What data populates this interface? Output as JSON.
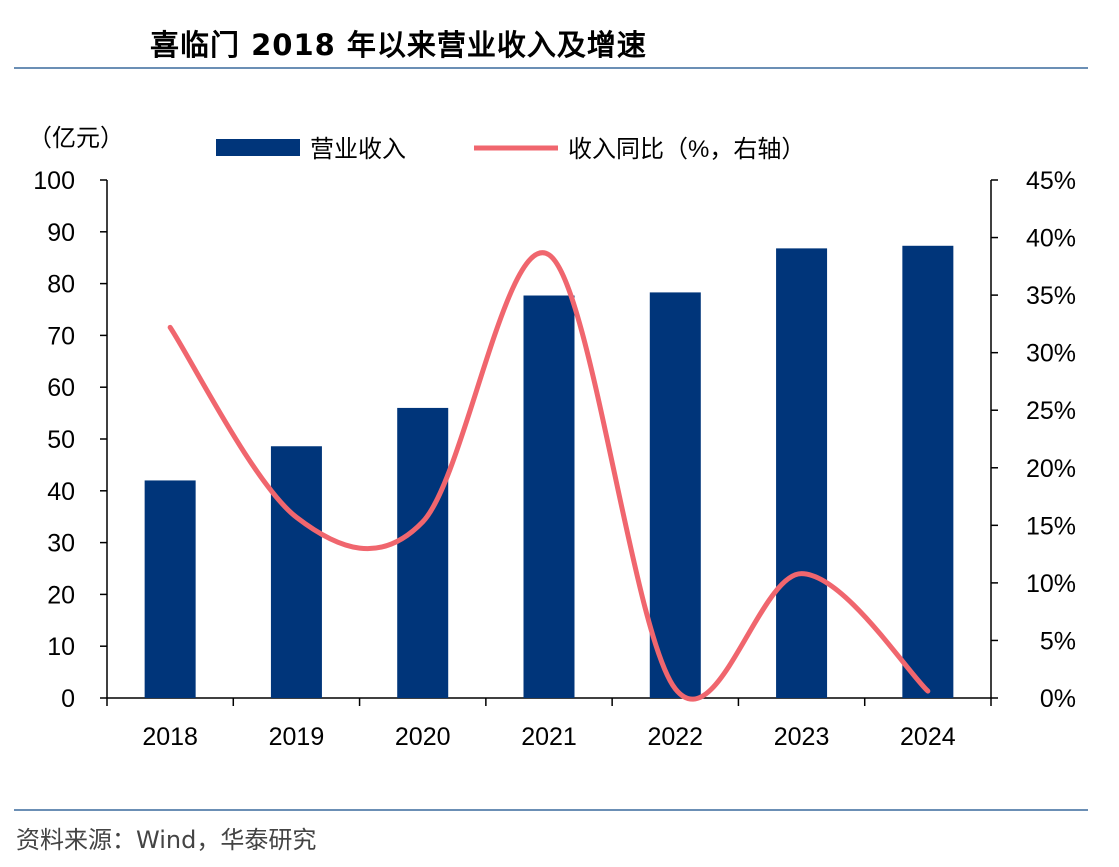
{
  "header": {
    "title": "喜临门 2018 年以来营业收入及增速"
  },
  "footer": {
    "source": "资料来源：Wind，华泰研究"
  },
  "colors": {
    "bar": "#00357a",
    "line": "#f0666e",
    "rule": "#6b8fb5"
  },
  "chart_data": {
    "type": "bar+line",
    "categories": [
      "2018",
      "2019",
      "2020",
      "2021",
      "2022",
      "2023",
      "2024"
    ],
    "series": [
      {
        "name": "营业收入",
        "type": "bar",
        "axis": "left",
        "values": [
          42.0,
          48.6,
          56.0,
          77.7,
          78.3,
          86.8,
          87.3
        ]
      },
      {
        "name": "收入同比（%，右轴）",
        "type": "line",
        "axis": "right",
        "values": [
          32.2,
          15.7,
          15.3,
          38.5,
          0.8,
          10.8,
          0.6
        ]
      }
    ],
    "left_axis": {
      "unit_label": "（亿元）",
      "range": [
        0,
        100
      ],
      "ticks": [
        0,
        10,
        20,
        30,
        40,
        50,
        60,
        70,
        80,
        90,
        100
      ]
    },
    "right_axis": {
      "range": [
        0,
        45
      ],
      "ticks": [
        0,
        5,
        10,
        15,
        20,
        25,
        30,
        35,
        40,
        45
      ],
      "tick_suffix": "%"
    },
    "legend": {
      "position": "top"
    },
    "grid": false
  }
}
